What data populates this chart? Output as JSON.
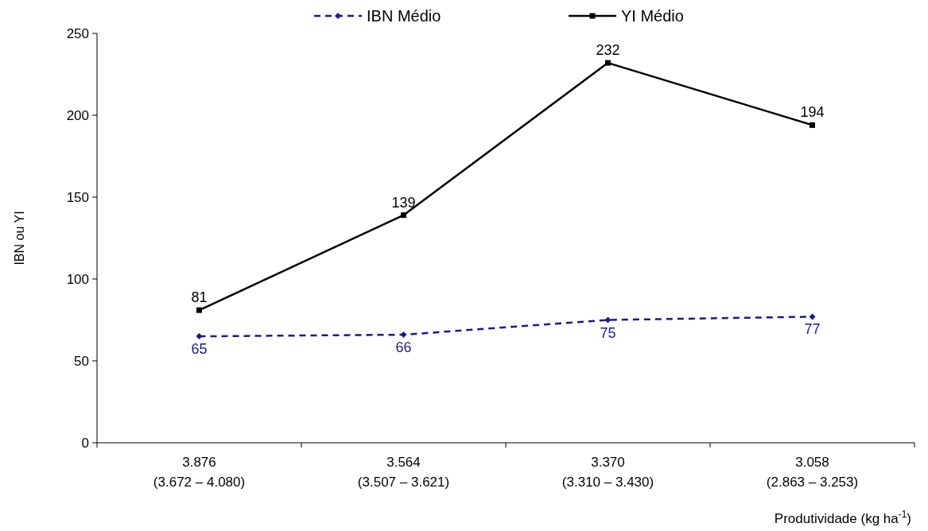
{
  "chart_data": {
    "type": "line",
    "xlabel": "Produtividade (kg ha$^{-1}$)",
    "ylabel": "IBN ou YI",
    "categories": [
      "3.876\n(3.672 – 4.080)",
      "3.564\n(3.507 – 3.621)",
      "3.370\n(3.310 – 3.430)",
      "3.058\n(2.863 – 3.253)"
    ],
    "series": [
      {
        "name": "IBN Médio",
        "color": "#1a1a8c",
        "values": [
          65,
          66,
          75,
          77
        ],
        "marker": "diamond",
        "line_style": "dashed"
      },
      {
        "name": "YI Médio",
        "color": "#000000",
        "values": [
          81,
          139,
          232,
          194
        ],
        "marker": "square",
        "line_style": "solid"
      }
    ],
    "ylim": [
      0,
      250
    ],
    "yticks": [
      0,
      50,
      100,
      150,
      200,
      250
    ],
    "data_labels": true,
    "legend": "top",
    "grid": false
  }
}
